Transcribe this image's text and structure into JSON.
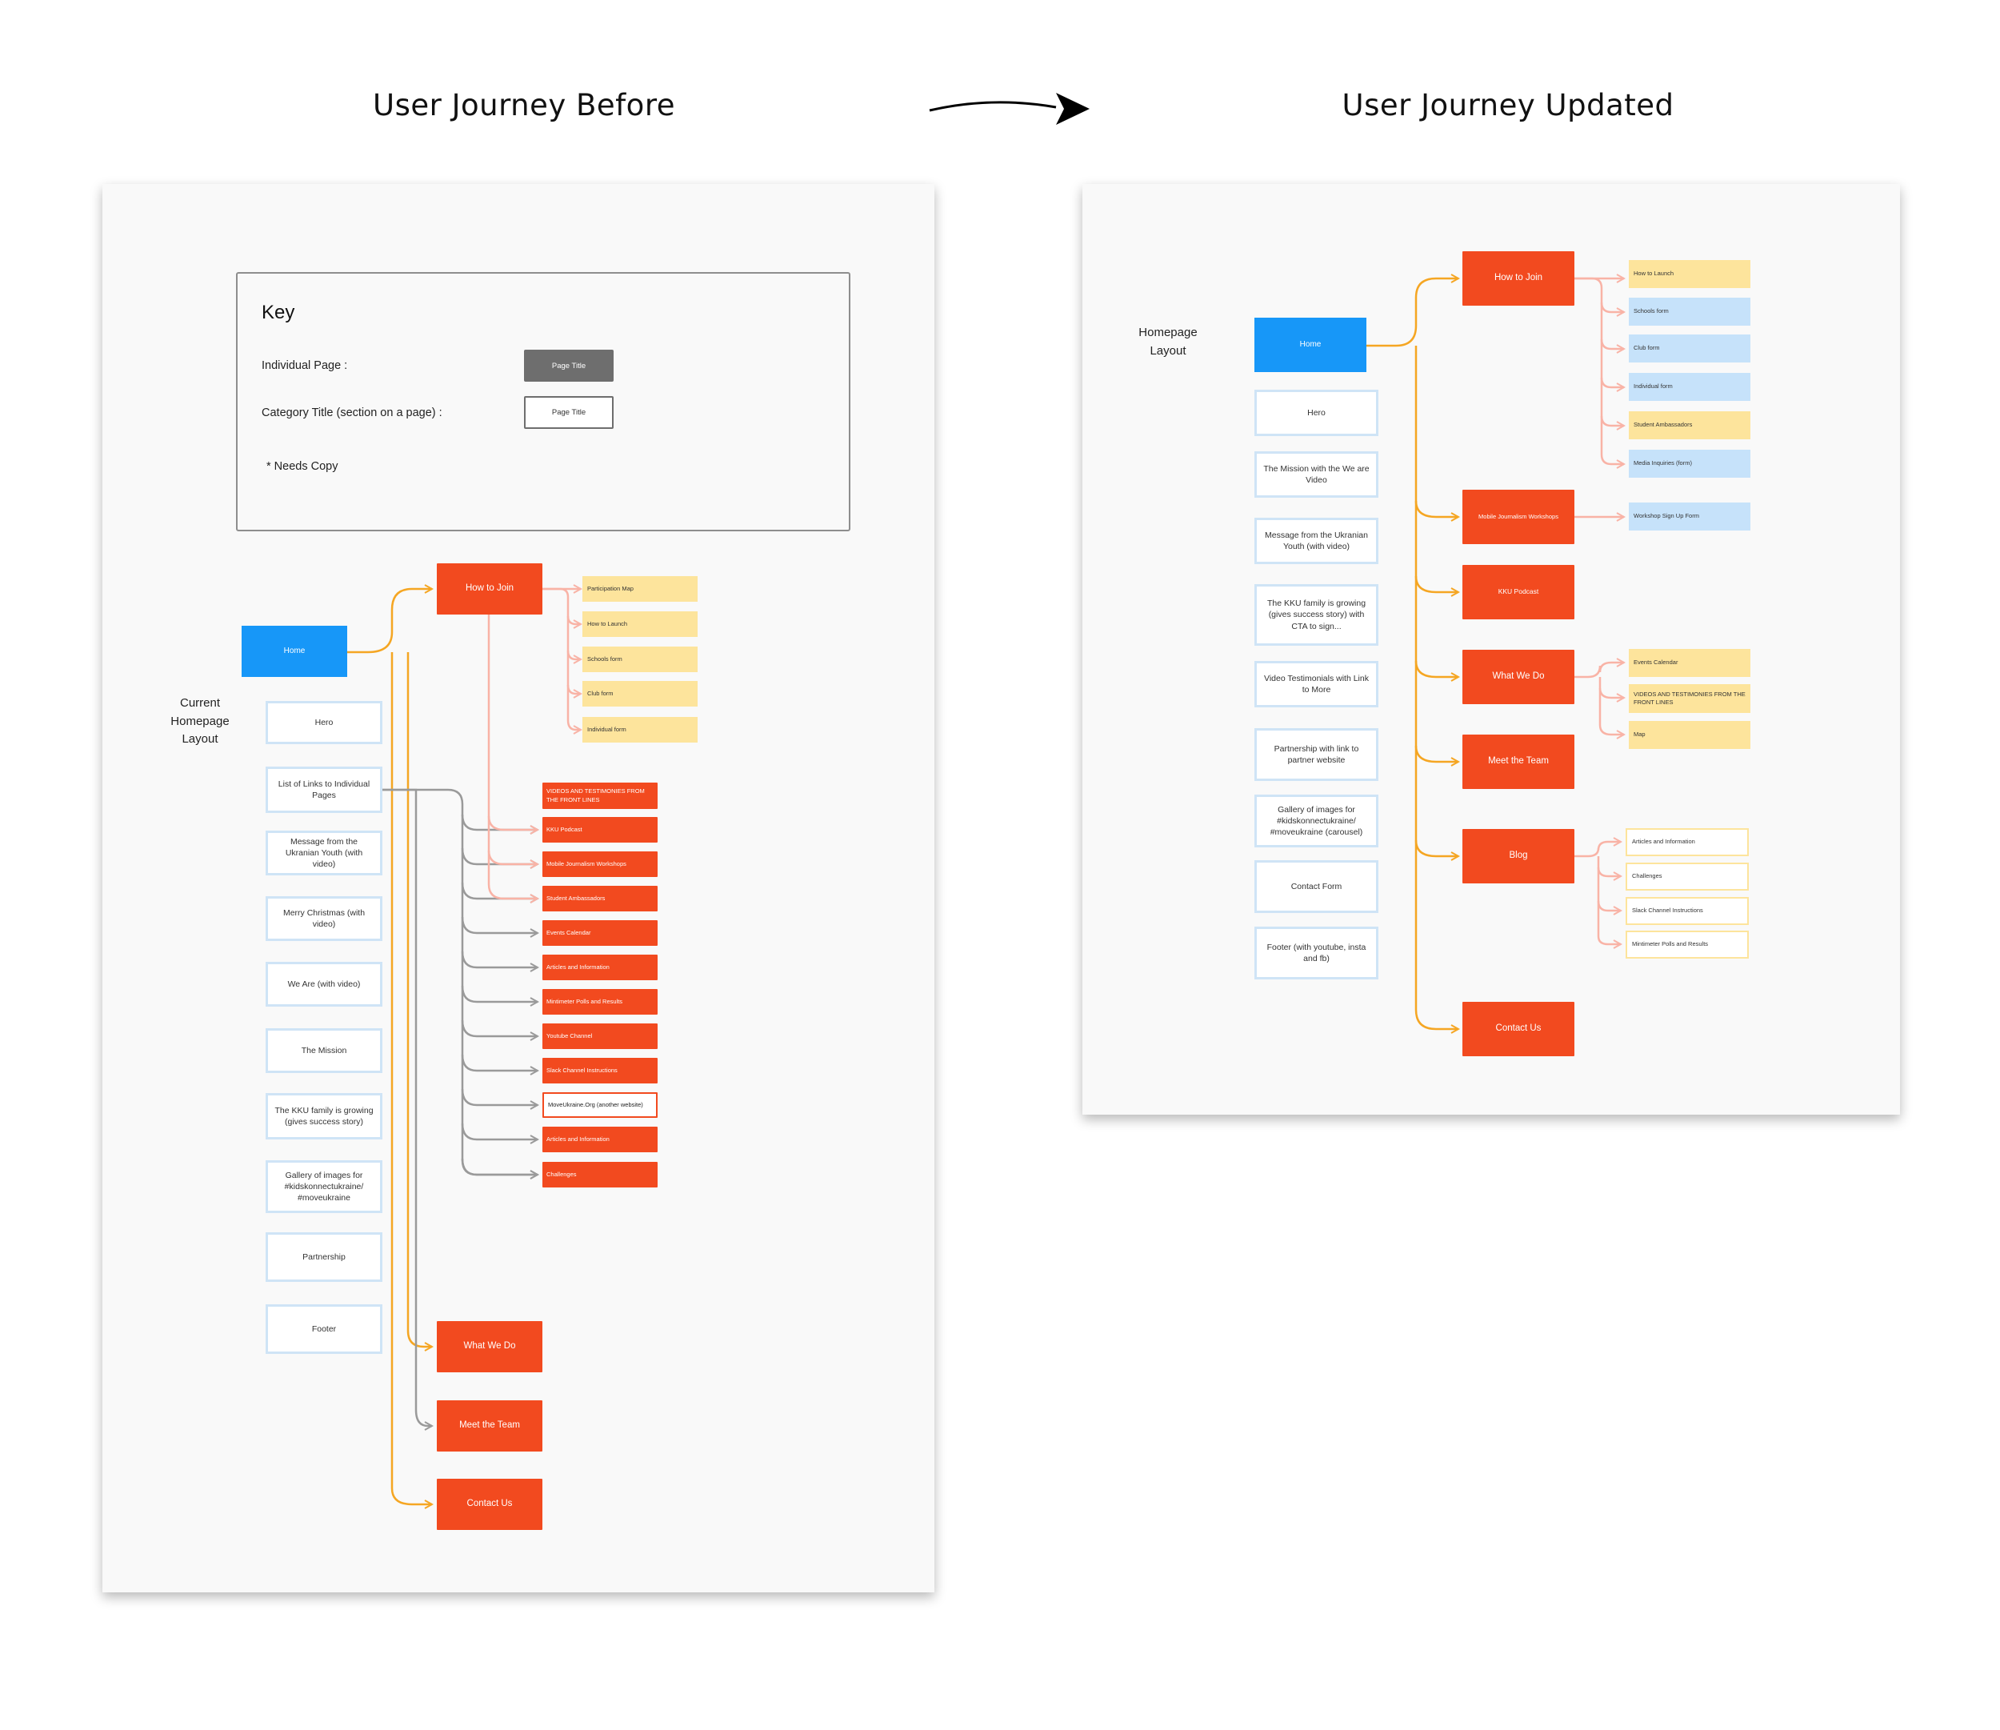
{
  "headings": {
    "before": "User Journey Before",
    "after": "User Journey Updated"
  },
  "colors": {
    "page": "#f24a1f",
    "home": "#1797f8",
    "orange_line": "#f5a623",
    "pink_line": "#f9b3a6",
    "gray_line": "#9a9a9a",
    "yellow": "#fde49c",
    "blue": "#c6e2fa",
    "section_border": "#cfe4f6"
  },
  "key": {
    "title": "Key",
    "individual_page_label": "Individual Page :",
    "category_label": "Category Title (section on a page) :",
    "swatch_label": "Page Title",
    "needs_copy": "* Needs Copy"
  },
  "before": {
    "layout_label": "Current\nHomepage\nLayout",
    "home": "Home",
    "sections": [
      "Hero",
      "List of Links to Individual Pages",
      "Message from the Ukranian Youth (with video)",
      "Merry Christmas (with video)",
      "We Are (with video)",
      "The Mission",
      "The KKU family is growing (gives success story)",
      "Gallery of images for #kidskonnectukraine/ #moveukraine",
      "Partnership",
      "Footer"
    ],
    "how_to_join": "How to Join",
    "how_to_join_children": [
      "Participation Map",
      "How to Launch",
      "Schools form",
      "Club form",
      "Individual form"
    ],
    "link_pages": [
      "VIDEOS AND TESTIMONIES FROM THE FRONT LINES",
      "KKU Podcast",
      "Mobile Journalism Workshops",
      "Student Ambassadors",
      "Events Calendar",
      "Articles and Information",
      "Mintimeter Polls and Results",
      "Youtube Channel",
      "Slack Channel Instructions",
      "MoveUkraine.Org (another website)",
      "Articles and Information",
      "Challenges"
    ],
    "bottom_pages": [
      "What We Do",
      "Meet the Team",
      "Contact Us"
    ]
  },
  "after": {
    "layout_label": "Homepage\nLayout",
    "home": "Home",
    "sections": [
      "Hero",
      "The Mission with the We are Video",
      "Message from the Ukranian Youth (with video)",
      "The KKU family is growing (gives success story) with CTA to sign...",
      "Video Testimonials with Link to More",
      "Partnership with link to partner website",
      "Gallery of images for #kidskonnectukraine/ #moveukraine (carousel)",
      "Contact Form",
      "Footer (with youtube, insta and fb)"
    ],
    "pages": [
      "How to Join",
      "Mobile Journalism Workshops",
      "KKU Podcast",
      "What We Do",
      "Meet the Team",
      "Blog",
      "Contact Us"
    ],
    "how_to_join_children": [
      "How to Launch",
      "Schools form",
      "Club form",
      "Individual form",
      "Student Ambassadors",
      "Media Inquiries (form)"
    ],
    "workshops_children": [
      "Workshop Sign Up Form"
    ],
    "what_we_do_children": [
      "Events Calendar",
      "VIDEOS AND TESTIMONIES FROM THE FRONT LINES",
      "Map"
    ],
    "blog_children": [
      "Articles and Information",
      "Challenges",
      "Slack Channel Instructions",
      "Mintimeter Polls and Results"
    ]
  }
}
